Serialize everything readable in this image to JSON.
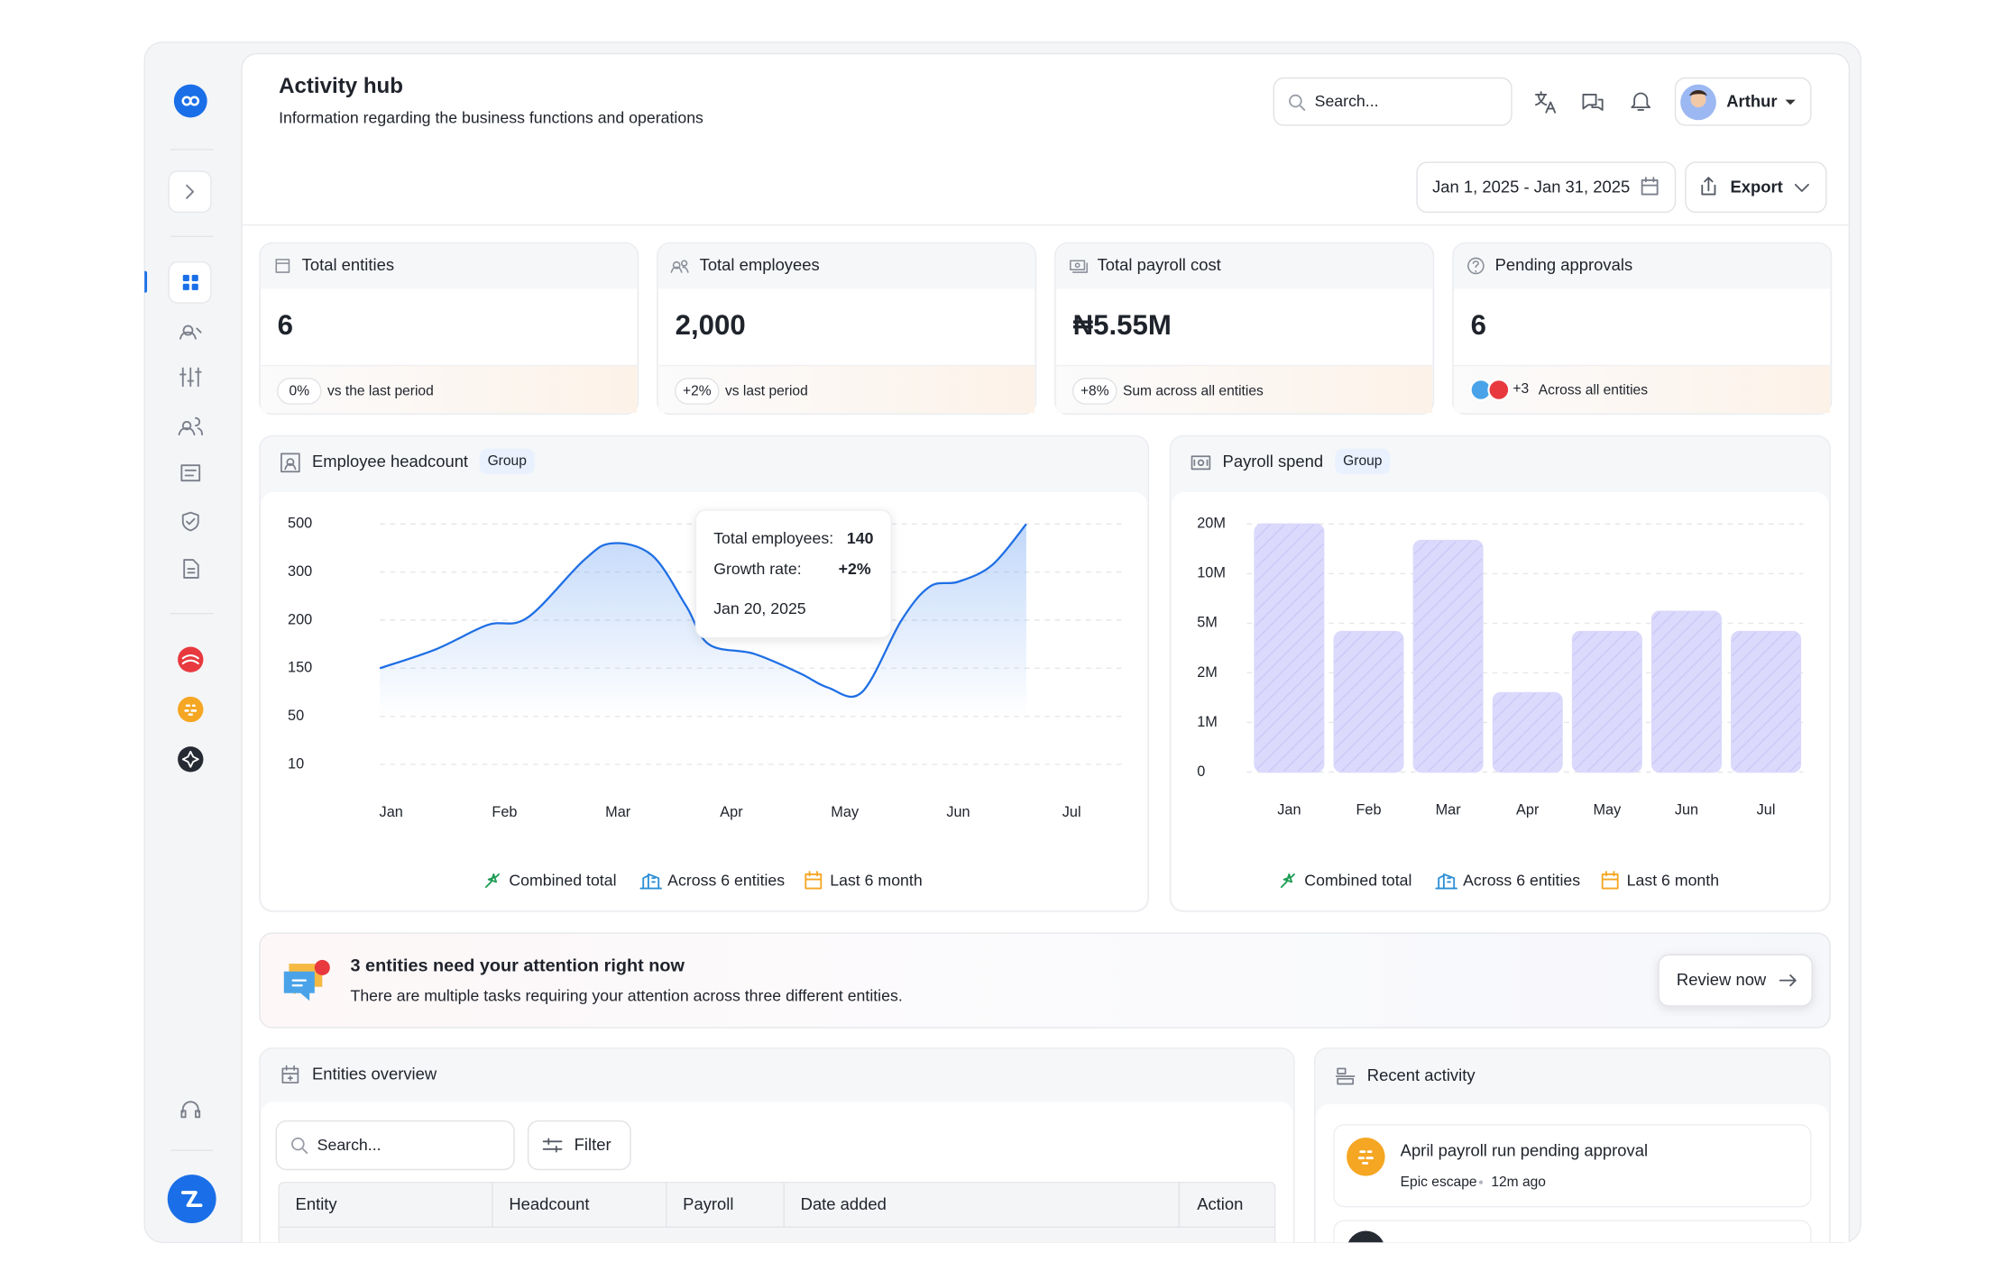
{
  "header": {
    "title": "Activity hub",
    "subtitle": "Information regarding the business functions and operations",
    "search_placeholder": "Search...",
    "user_name": "Arthur",
    "date_range": "Jan 1, 2025 - Jan 31, 2025",
    "export": "Export"
  },
  "stats": [
    {
      "label": "Total entities",
      "value": "6",
      "badge": "0%",
      "note": "vs the last period"
    },
    {
      "label": "Total employees",
      "value": "2,000",
      "badge": "+2%",
      "note": "vs last period"
    },
    {
      "label": "Total payroll cost",
      "value": "₦5.55M",
      "badge": "+8%",
      "note": "Sum across all entities"
    },
    {
      "label": "Pending approvals",
      "value": "6",
      "badge": "+3",
      "note": "Across all entities"
    }
  ],
  "chart_data": [
    {
      "type": "line",
      "title": "Employee headcount",
      "badge": "Group",
      "legend": [
        "Combined total",
        "Across 6 entities",
        "Last 6 month"
      ],
      "tooltip": {
        "employees_label": "Total employees:",
        "employees_value": "140",
        "growth_label": "Growth rate:",
        "growth_value": "+2%",
        "date": "Jan 20, 2025"
      },
      "x": [
        -0.1,
        0.4,
        0.85,
        1.2,
        1.7,
        1.95,
        2.3,
        2.6,
        2.8,
        3.2,
        3.6,
        3.85,
        4.15,
        4.5,
        4.75,
        5.0,
        5.3,
        5.6
      ],
      "values": [
        150,
        170,
        195,
        205,
        350,
        420,
        370,
        230,
        175,
        165,
        140,
        110,
        100,
        200,
        270,
        280,
        330,
        500
      ],
      "color": "#1f6fe5",
      "xlim": [
        -0.1,
        6.44
      ],
      "xticks": [
        {
          "value": 0,
          "label": "Jan"
        },
        {
          "value": 1,
          "label": "Feb"
        },
        {
          "value": 2,
          "label": "Mar"
        },
        {
          "value": 3,
          "label": "Apr"
        },
        {
          "value": 4,
          "label": "May"
        },
        {
          "value": 5,
          "label": "Jun"
        },
        {
          "value": 6,
          "label": "Jul"
        }
      ],
      "ylim": [
        10,
        500
      ],
      "yticks": [
        500,
        300,
        200,
        150,
        50,
        10
      ],
      "grid": true
    },
    {
      "type": "bar",
      "title": "Payroll spend",
      "badge": "Group",
      "legend": [
        "Combined total",
        "Across 6 entities",
        "Last 6 month"
      ],
      "categories": [
        "Jan",
        "Feb",
        "Mar",
        "Apr",
        "May",
        "Jun",
        "Jul"
      ],
      "values": [
        20000000,
        4500000,
        16700000,
        1600000,
        4500000,
        6200000,
        4500000
      ],
      "color": "#d9d8fb",
      "ylim": [
        0,
        20000000
      ],
      "yticks": [
        {
          "value": 20000000,
          "label": "20M"
        },
        {
          "value": 10000000,
          "label": "10M"
        },
        {
          "value": 5000000,
          "label": "5M"
        },
        {
          "value": 2000000,
          "label": "2M"
        },
        {
          "value": 1000000,
          "label": "1M"
        },
        0
      ],
      "grid": true
    }
  ],
  "alert": {
    "title": "3 entities need your attention right now",
    "text": "There are multiple tasks requiring your attention across three different entities.",
    "button": "Review now"
  },
  "entities_overview": {
    "title": "Entities overview",
    "search_placeholder": "Search...",
    "filter": "Filter",
    "columns": [
      "Entity",
      "Headcount",
      "Payroll",
      "Date added",
      "Action"
    ]
  },
  "recent_activity": {
    "title": "Recent activity",
    "items": [
      {
        "title": "April payroll run pending approval",
        "entity": "Epic escape",
        "time": "12m ago"
      }
    ]
  }
}
